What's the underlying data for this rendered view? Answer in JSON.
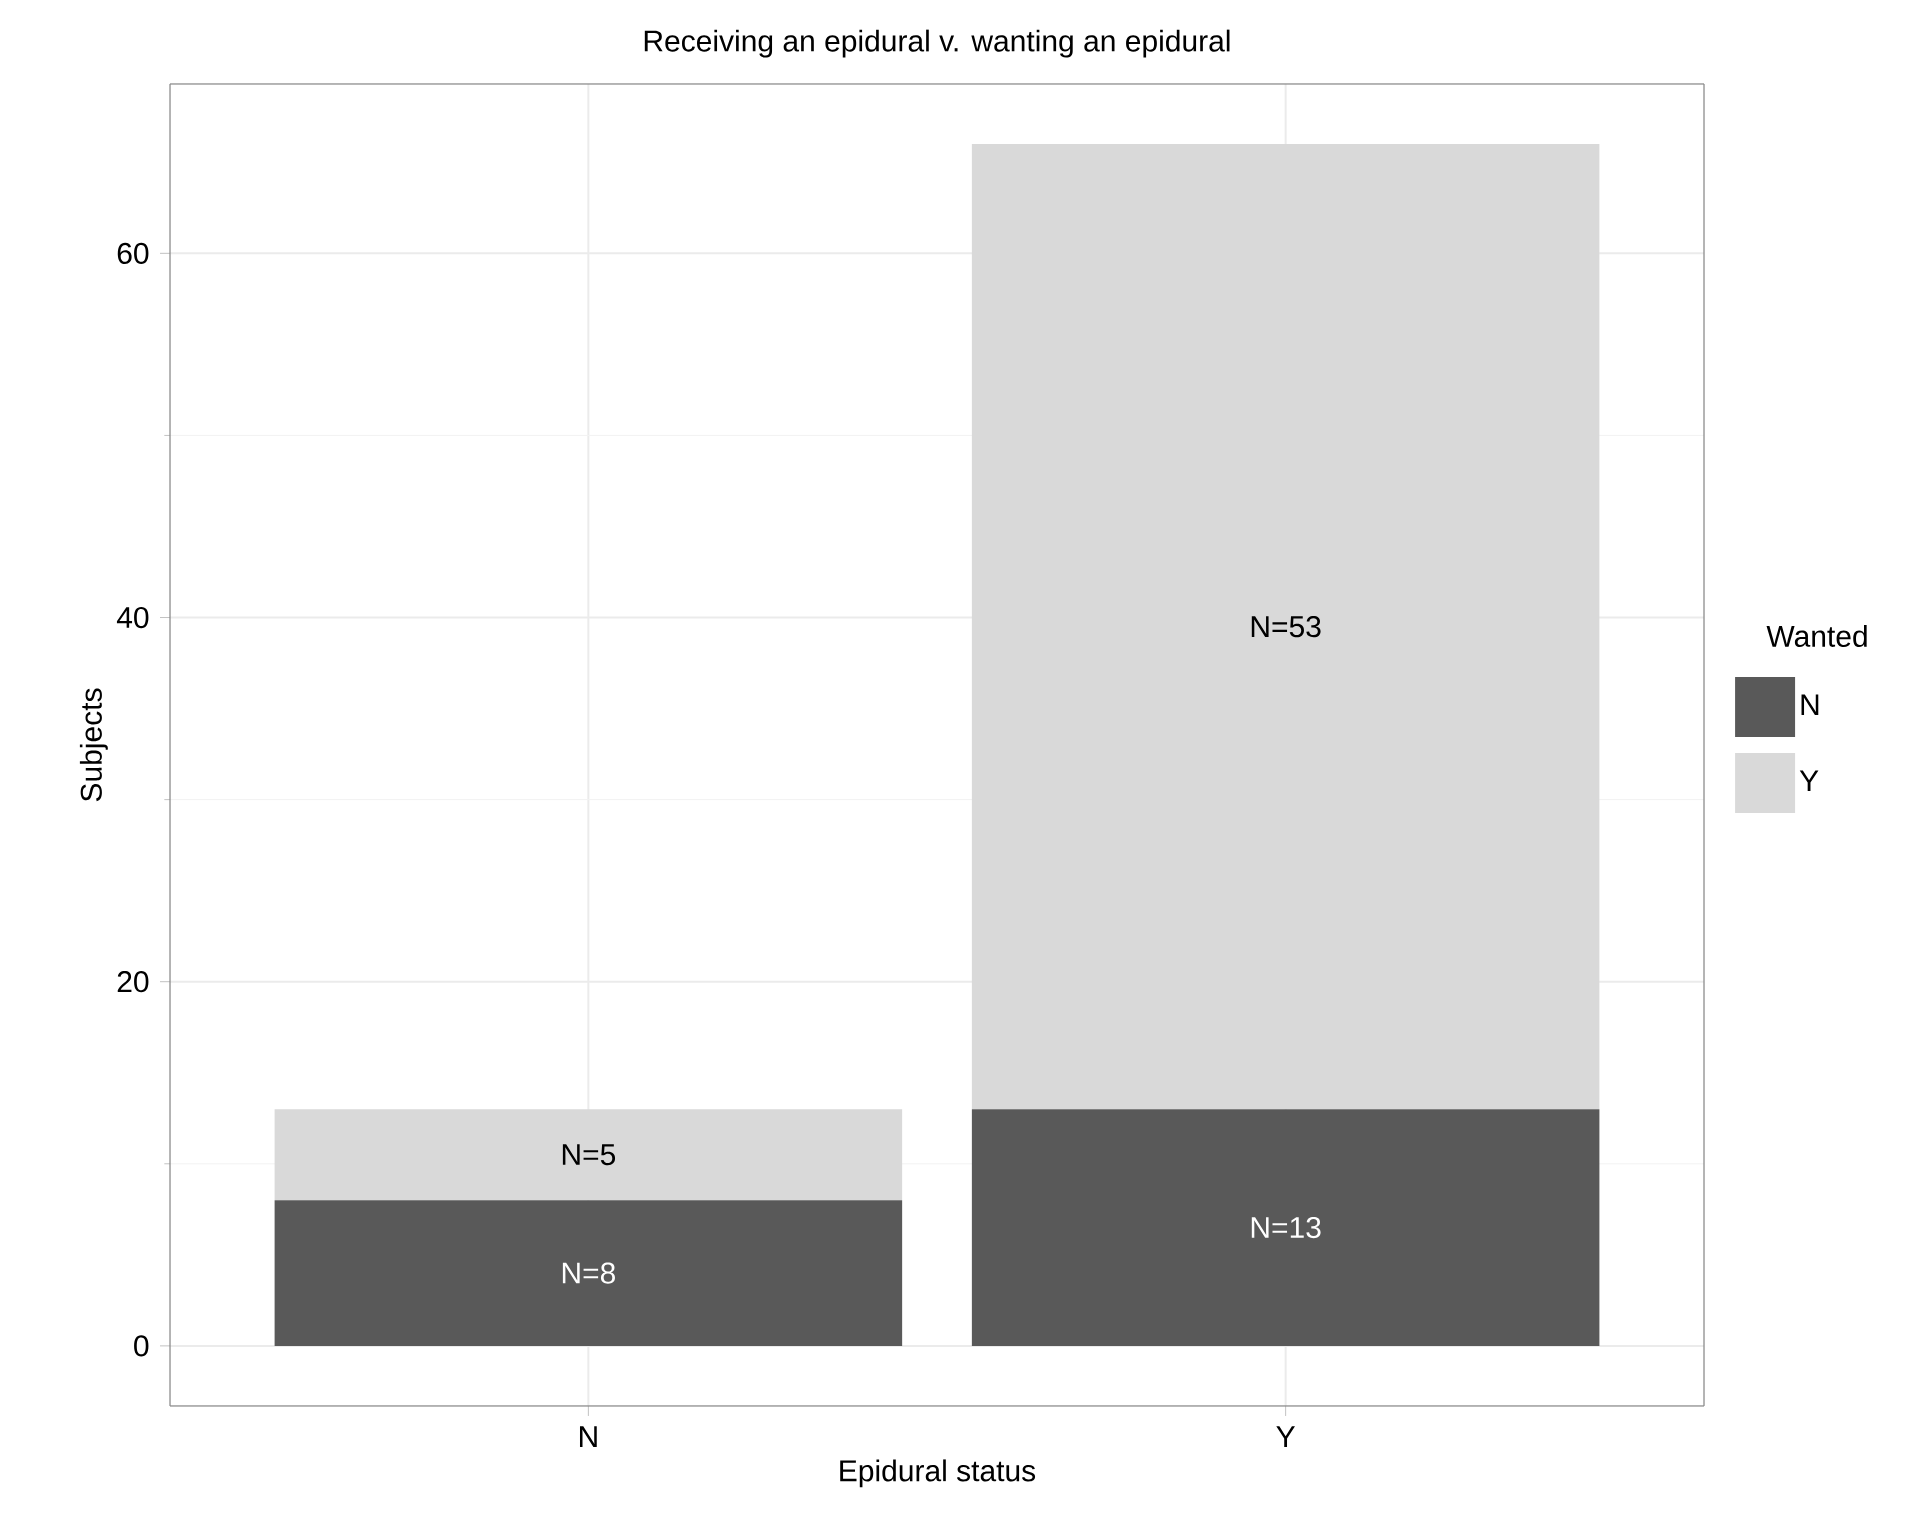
{
  "chart_data": {
    "type": "bar",
    "title": "Receiving an epidural v. wanting an epidural",
    "xlabel": "Epidural status",
    "ylabel": "Subjects",
    "legend_title": "Wanted",
    "categories": [
      "N",
      "Y"
    ],
    "series": [
      {
        "name": "N",
        "color": "#595959",
        "values": [
          8,
          13
        ],
        "value_labels": [
          "N=8",
          "N=13"
        ]
      },
      {
        "name": "Y",
        "color": "#d9d9d9",
        "values": [
          5,
          53
        ],
        "value_labels": [
          "N=5",
          "N=53"
        ]
      }
    ],
    "stacked": true,
    "ylim": [
      -3.3,
      69.3
    ],
    "yticks": [
      0,
      20,
      40,
      60
    ],
    "grid": true,
    "legend": "right"
  }
}
